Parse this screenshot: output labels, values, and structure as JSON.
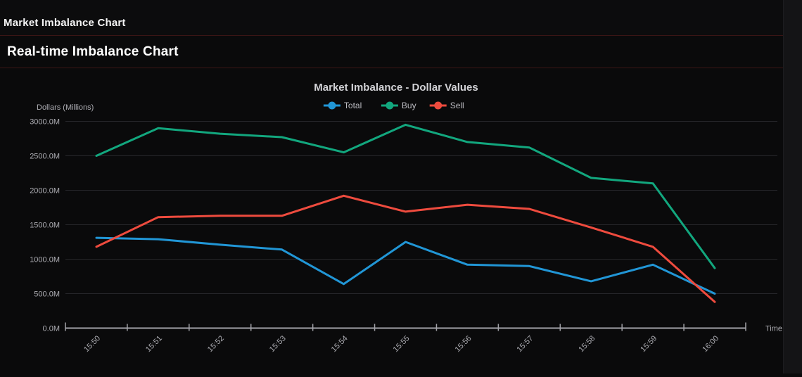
{
  "header": {
    "app_title": "Market Imbalance Chart"
  },
  "section": {
    "title": "Real-time Imbalance Chart"
  },
  "chart_data": {
    "type": "line",
    "title": "Market Imbalance - Dollar Values",
    "ylabel": "Dollars (Millions)",
    "xlabel": "Time",
    "categories": [
      "15:50",
      "15:51",
      "15:52",
      "15:53",
      "15:54",
      "15:55",
      "15:56",
      "15:57",
      "15:58",
      "15:59",
      "16:00"
    ],
    "series": [
      {
        "name": "Total",
        "color": "#2196d6",
        "values": [
          1310,
          1290,
          1210,
          1140,
          640,
          1250,
          920,
          900,
          680,
          920,
          500
        ]
      },
      {
        "name": "Buy",
        "color": "#12a77e",
        "values": [
          2500,
          2900,
          2820,
          2770,
          2550,
          2950,
          2700,
          2620,
          2180,
          2100,
          870
        ]
      },
      {
        "name": "Sell",
        "color": "#ee4b3e",
        "values": [
          1180,
          1610,
          1630,
          1630,
          1920,
          1690,
          1790,
          1730,
          1460,
          1180,
          380
        ]
      }
    ],
    "ylim": [
      0,
      3000
    ],
    "ytick_step": 500,
    "ytick_suffix": "M",
    "grid": true,
    "legend_position": "top-center"
  },
  "colors": {
    "background": "#0a0a0b",
    "divider": "#3a1515",
    "grid": "#27272b",
    "axis": "#a2a2a8",
    "tick_label": "#aeaeb4",
    "chart_title": "#d2d2d6",
    "legend_label": "#bcbcc2"
  }
}
